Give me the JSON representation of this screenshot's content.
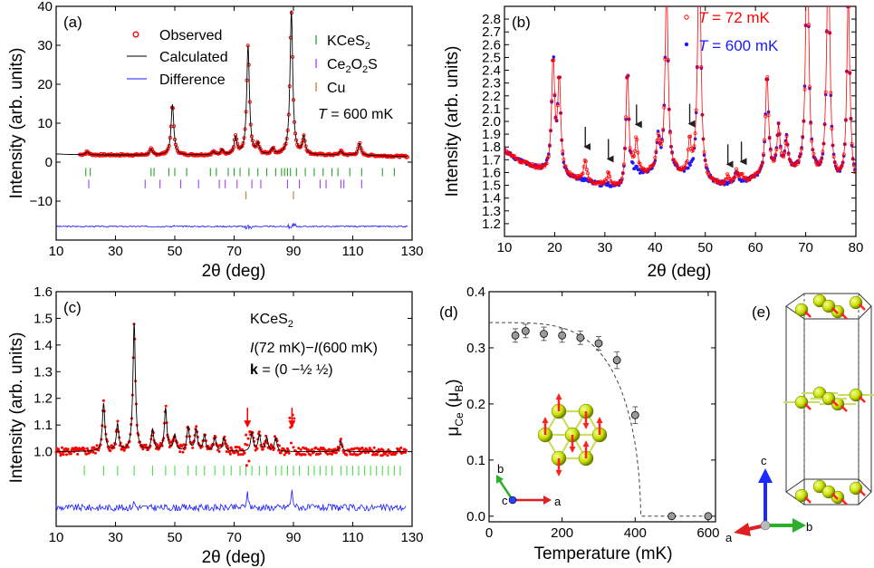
{
  "colors": {
    "observed": "#ff0000",
    "observed_dark": "#b30000",
    "calculated": "#000000",
    "difference": "#1a1aff",
    "t600": "#1a1aff",
    "kces2_ticks": "#2aa02a",
    "kces2_ticks_c": "#4de04d",
    "ce2o2s_ticks": "#a040ff",
    "cu_ticks": "#c8782a",
    "arrow_black": "#222222",
    "arrow_red": "#ff0000",
    "sphere": "#c8e000",
    "bond": "#c8e060",
    "moment": "#ff2020",
    "fit": "#444444",
    "marker_fill": "#9a9a9a"
  },
  "chart_data": [
    {
      "panel_label": "(a)",
      "type": "line",
      "xlabel": "2θ (deg)",
      "ylabel": "Intensity (arb. units)",
      "xlim": [
        10,
        130
      ],
      "ylim": [
        -20,
        40
      ],
      "xticks": [
        10,
        30,
        50,
        70,
        90,
        110,
        130
      ],
      "yticks": [
        0,
        10,
        20,
        30,
        40
      ],
      "ytick_labels": [
        "0",
        "10",
        "20",
        "30",
        "40"
      ],
      "extra_ytick": -10,
      "extra_ytick_label": "−10",
      "legend": {
        "observed": "Observed",
        "calculated": "Calculated",
        "difference": "Difference"
      },
      "phases": [
        "KCeS",
        "Ce",
        "O",
        "S",
        "Cu"
      ],
      "phase_subscripts": [
        "2",
        "2",
        "2"
      ],
      "temperature_label": {
        "symbol": "T",
        "rest": " = 600 mK"
      },
      "baseline": 1.8,
      "peaks": [
        {
          "x": 20.5,
          "h": 0.8
        },
        {
          "x": 42,
          "h": 1.5
        },
        {
          "x": 49.2,
          "h": 13.0
        },
        {
          "x": 63,
          "h": 0.8
        },
        {
          "x": 66,
          "h": 1.3
        },
        {
          "x": 70.5,
          "h": 4.5
        },
        {
          "x": 74.7,
          "h": 28.0
        },
        {
          "x": 78,
          "h": 2.5
        },
        {
          "x": 83,
          "h": 1.5
        },
        {
          "x": 89.3,
          "h": 37.0
        },
        {
          "x": 93.5,
          "h": 4.5
        },
        {
          "x": 106,
          "h": 1.0
        },
        {
          "x": 112.3,
          "h": 3.0
        }
      ],
      "difference_offset": -16.5,
      "ticks_kces2": [
        20,
        21.5,
        42,
        43,
        48,
        50,
        54,
        62,
        64,
        68,
        70,
        72,
        75,
        78,
        81,
        84,
        86,
        87,
        88,
        89,
        91,
        94,
        97,
        100,
        103,
        105,
        109,
        113,
        120,
        124
      ],
      "ticks_ce2o2s": [
        21,
        40,
        45,
        52,
        58,
        65,
        67,
        71,
        76,
        79,
        88,
        92,
        99,
        101,
        106,
        107,
        113
      ],
      "ticks_cu": [
        74,
        90
      ]
    },
    {
      "panel_label": "(b)",
      "type": "line",
      "xlabel": "2θ (deg)",
      "ylabel": "Intensity (arb. units)",
      "xlim": [
        10,
        80
      ],
      "ylim": [
        1.1,
        2.9
      ],
      "xticks": [
        10,
        20,
        30,
        40,
        50,
        60,
        70,
        80
      ],
      "yticks": [
        1.2,
        1.3,
        1.4,
        1.5,
        1.6,
        1.7,
        1.8,
        1.9,
        2.0,
        2.1,
        2.2,
        2.3,
        2.4,
        2.5,
        2.6,
        2.7,
        2.8
      ],
      "ytick_labels": [
        "1.2",
        "1.3",
        "1.4",
        "1.5",
        "1.6",
        "1.7",
        "1.8",
        "1.9",
        "2.0",
        "2.1",
        "2.2",
        "2.3",
        "2.4",
        "2.5",
        "2.6",
        "2.7",
        "2.8"
      ],
      "legend": [
        {
          "symbol": "T",
          "rest": " = 72 mK"
        },
        {
          "symbol": "T",
          "rest": " = 600 mK"
        }
      ],
      "peaks": [
        {
          "x": 19.7,
          "h": 0.9
        },
        {
          "x": 20.9,
          "h": 0.75
        },
        {
          "x": 26.1,
          "h": 0.12
        },
        {
          "x": 30.7,
          "h": 0.06
        },
        {
          "x": 34.5,
          "h": 0.95
        },
        {
          "x": 36.3,
          "h": 0.22
        },
        {
          "x": 40.6,
          "h": 0.25
        },
        {
          "x": 42.3,
          "h": 1.5
        },
        {
          "x": 46.9,
          "h": 0.2
        },
        {
          "x": 48.8,
          "h": 2.0
        },
        {
          "x": 56.2,
          "h": 0.1
        },
        {
          "x": 62.3,
          "h": 0.8
        },
        {
          "x": 64.6,
          "h": 0.35
        },
        {
          "x": 66.2,
          "h": 0.25
        },
        {
          "x": 70.3,
          "h": 2.0
        },
        {
          "x": 74.5,
          "h": 2.0
        },
        {
          "x": 78.5,
          "h": 1.5
        }
      ],
      "magnetic_peaks": [
        26.1,
        30.7,
        36.3,
        46.9,
        54.5,
        57.2
      ]
    },
    {
      "panel_label": "(c)",
      "type": "line",
      "xlabel": "2θ (deg)",
      "ylabel": "Intensity (arb. units)",
      "xlim": [
        10,
        130
      ],
      "ylim": [
        0.72,
        1.6
      ],
      "xticks": [
        10,
        30,
        50,
        70,
        90,
        110,
        130
      ],
      "yticks": [
        1.0,
        1.1,
        1.2,
        1.3,
        1.4,
        1.5,
        1.6
      ],
      "ytick_labels": [
        "1.0",
        "1.1",
        "1.2",
        "1.3",
        "1.4",
        "1.5",
        "1.6"
      ],
      "annotation_title": "KCeS",
      "annotation_title_sub": "2",
      "annotation_diff": {
        "i1": "I",
        "rest1": "(72 mK)−",
        "i2": "I",
        "rest2": "(600 mK)"
      },
      "annotation_k": {
        "k": "k",
        "rest": " = (0  −½  ½)"
      },
      "baseline": 1.0,
      "peaks": [
        {
          "x": 26,
          "h": 0.18
        },
        {
          "x": 30.7,
          "h": 0.1
        },
        {
          "x": 36.3,
          "h": 0.48
        },
        {
          "x": 42.5,
          "h": 0.08
        },
        {
          "x": 46.9,
          "h": 0.16
        },
        {
          "x": 50,
          "h": 0.06
        },
        {
          "x": 54.5,
          "h": 0.09
        },
        {
          "x": 57.2,
          "h": 0.08
        },
        {
          "x": 60,
          "h": 0.06
        },
        {
          "x": 63.5,
          "h": 0.05
        },
        {
          "x": 66.5,
          "h": 0.05
        },
        {
          "x": 76,
          "h": 0.07
        },
        {
          "x": 78.5,
          "h": 0.06
        },
        {
          "x": 81,
          "h": 0.05
        },
        {
          "x": 84,
          "h": 0.05
        },
        {
          "x": 106,
          "h": 0.04
        }
      ],
      "red_arrows": [
        74.5,
        89.5
      ],
      "difference_offset": 0.79,
      "ticks": [
        19.5,
        26,
        30.7,
        36.3,
        42.5,
        46.9,
        50,
        54.5,
        57.2,
        60,
        63.5,
        66.5,
        69,
        72,
        74,
        76,
        78.5,
        81,
        84,
        86,
        88,
        90,
        92,
        95,
        97,
        99,
        101,
        103,
        106,
        108,
        110,
        112,
        114,
        116,
        118,
        120,
        122,
        124,
        126
      ]
    },
    {
      "panel_label": "(d)",
      "type": "scatter",
      "xlabel": "Temperature (mK)",
      "ylabel_mu": "μ",
      "ylabel_sub": "Ce",
      "ylabel_unit_open": " (μ",
      "ylabel_unit_sub": "B",
      "ylabel_unit_close": ")",
      "xlim": [
        0,
        620
      ],
      "ylim": [
        -0.01,
        0.4
      ],
      "xticks": [
        0,
        200,
        400,
        600
      ],
      "yticks": [
        0.0,
        0.1,
        0.2,
        0.3,
        0.4
      ],
      "ytick_labels": [
        "0.0",
        "0.1",
        "0.2",
        "0.3",
        "0.4"
      ],
      "points": [
        {
          "x": 72,
          "y": 0.322,
          "err": 0.012
        },
        {
          "x": 100,
          "y": 0.33,
          "err": 0.012
        },
        {
          "x": 150,
          "y": 0.325,
          "err": 0.012
        },
        {
          "x": 200,
          "y": 0.322,
          "err": 0.012
        },
        {
          "x": 250,
          "y": 0.318,
          "err": 0.012
        },
        {
          "x": 300,
          "y": 0.308,
          "err": 0.012
        },
        {
          "x": 350,
          "y": 0.278,
          "err": 0.015
        },
        {
          "x": 400,
          "y": 0.18,
          "err": 0.015
        },
        {
          "x": 500,
          "y": 0.0,
          "err": 0.0
        },
        {
          "x": 600,
          "y": 0.0,
          "err": 0.0
        }
      ],
      "fit": {
        "m0": 0.345,
        "tn": 415
      },
      "axes_labels": {
        "a": "a",
        "b": "b",
        "c": "c"
      }
    }
  ],
  "panel_e": {
    "label": "(e)",
    "a": "a",
    "b": "b",
    "c": "c"
  }
}
